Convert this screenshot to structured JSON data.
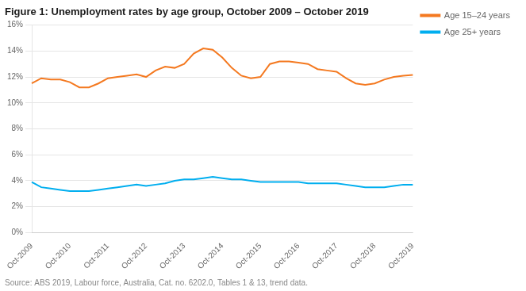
{
  "chart_data": {
    "type": "line",
    "title": "Figure 1: Unemployment rates by age group, October 2009 – October 2019",
    "source": "Source: ABS 2019, Labour force, Australia, Cat. no. 6202.0, Tables 1 & 13, trend data.",
    "categories": [
      "Oct-2009",
      null,
      null,
      null,
      "Oct-2010",
      null,
      null,
      null,
      "Oct-2011",
      null,
      null,
      null,
      "Oct-2012",
      null,
      null,
      null,
      "Oct-2013",
      null,
      null,
      null,
      "Oct-2014",
      null,
      null,
      null,
      "Oct-2015",
      null,
      null,
      null,
      "Oct-2016",
      null,
      null,
      null,
      "Oct-2017",
      null,
      null,
      null,
      "Oct-2018",
      null,
      null,
      null,
      "Oct-2019"
    ],
    "series": [
      {
        "name": "Age 15–24 years",
        "color": "#F47920",
        "values": [
          11.5,
          11.9,
          11.8,
          11.8,
          11.6,
          11.2,
          11.2,
          11.5,
          11.9,
          12.0,
          12.1,
          12.2,
          12.0,
          12.5,
          12.8,
          12.7,
          13.0,
          13.8,
          14.2,
          14.1,
          13.5,
          12.7,
          12.1,
          11.9,
          12.0,
          13.0,
          13.2,
          13.2,
          13.1,
          13.0,
          12.6,
          12.5,
          12.4,
          11.9,
          11.5,
          11.4,
          11.5,
          11.8,
          12.0,
          12.1,
          12.15
        ]
      },
      {
        "name": "Age 25+ years",
        "color": "#00AEEF",
        "values": [
          3.9,
          3.5,
          3.4,
          3.3,
          3.2,
          3.2,
          3.2,
          3.3,
          3.4,
          3.5,
          3.6,
          3.7,
          3.6,
          3.7,
          3.8,
          4.0,
          4.1,
          4.1,
          4.2,
          4.3,
          4.2,
          4.1,
          4.1,
          4.0,
          3.9,
          3.9,
          3.9,
          3.9,
          3.9,
          3.8,
          3.8,
          3.8,
          3.8,
          3.7,
          3.6,
          3.5,
          3.5,
          3.5,
          3.6,
          3.7,
          3.7
        ]
      }
    ],
    "ylim": [
      0,
      16
    ],
    "yticks": [
      {
        "value": 0,
        "label": "0%"
      },
      {
        "value": 2,
        "label": "2%"
      },
      {
        "value": 4,
        "label": "4%"
      },
      {
        "value": 6,
        "label": "6%"
      },
      {
        "value": 8,
        "label": "8%"
      },
      {
        "value": 10,
        "label": "10%"
      },
      {
        "value": 12,
        "label": "12%"
      },
      {
        "value": 14,
        "label": "14%"
      },
      {
        "value": 16,
        "label": "16%"
      }
    ],
    "grid": "y",
    "legend": "right"
  }
}
